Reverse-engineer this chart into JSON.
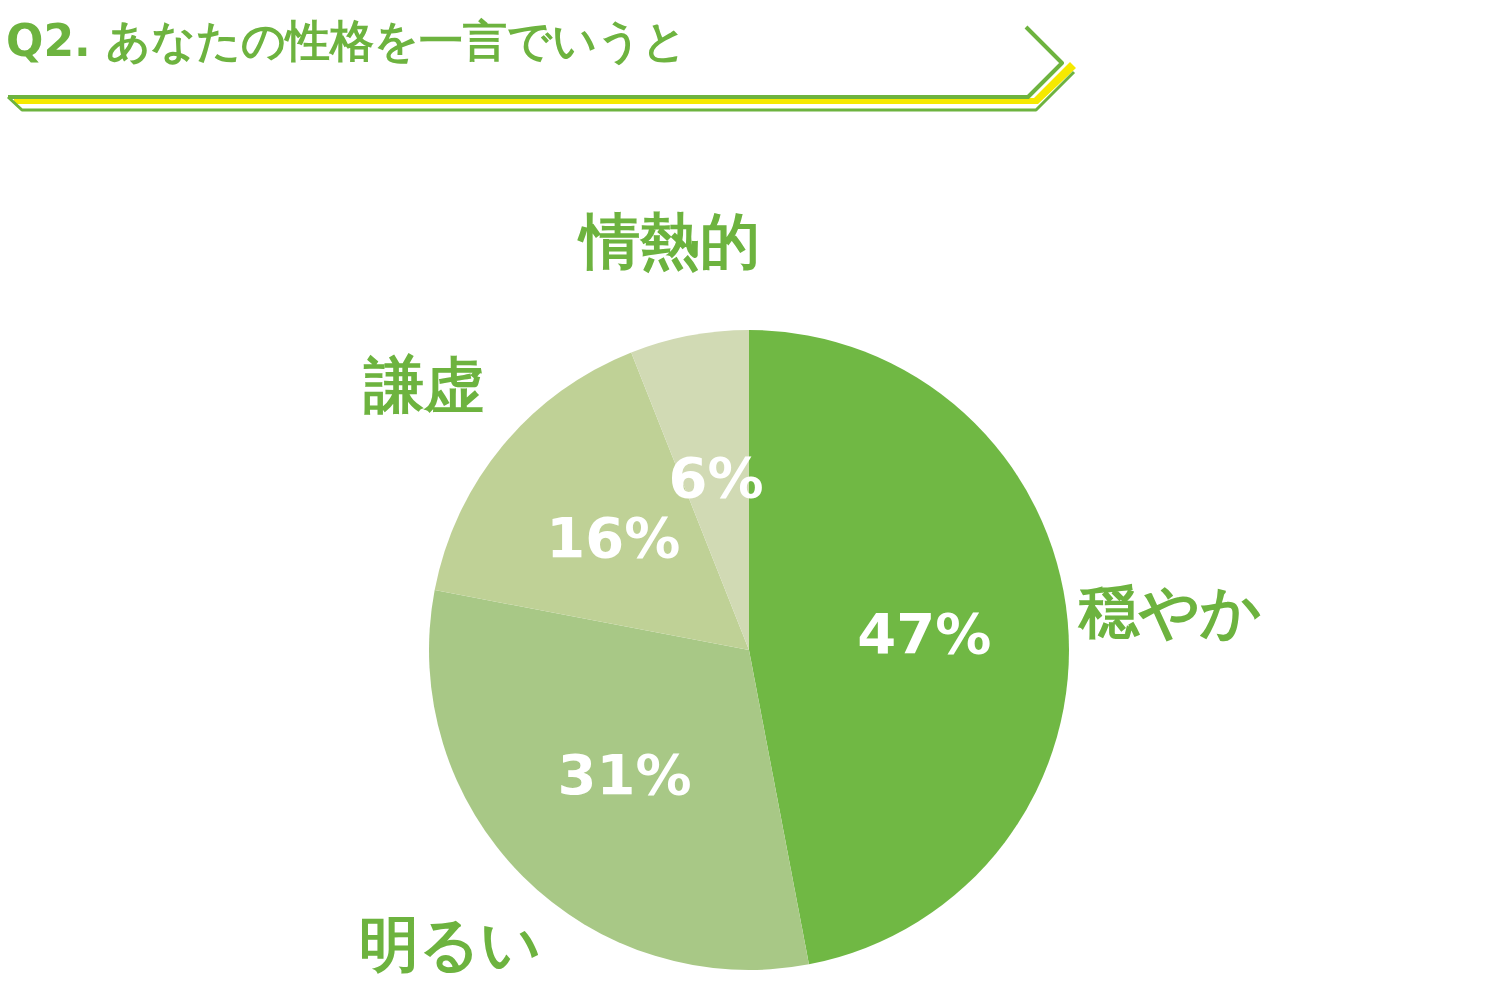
{
  "chart_data": {
    "type": "pie",
    "title": "Q2. あなたの性格を一言でいうと",
    "categories": [
      "穏やか",
      "明るい",
      "謙虚",
      "情熱的"
    ],
    "values": [
      47,
      31,
      16,
      6
    ],
    "colors": [
      "#70b844",
      "#a8c886",
      "#bfd196",
      "#d1dab4"
    ],
    "value_labels": [
      "47%",
      "31%",
      "16%",
      "6%"
    ],
    "legend": false
  }
}
